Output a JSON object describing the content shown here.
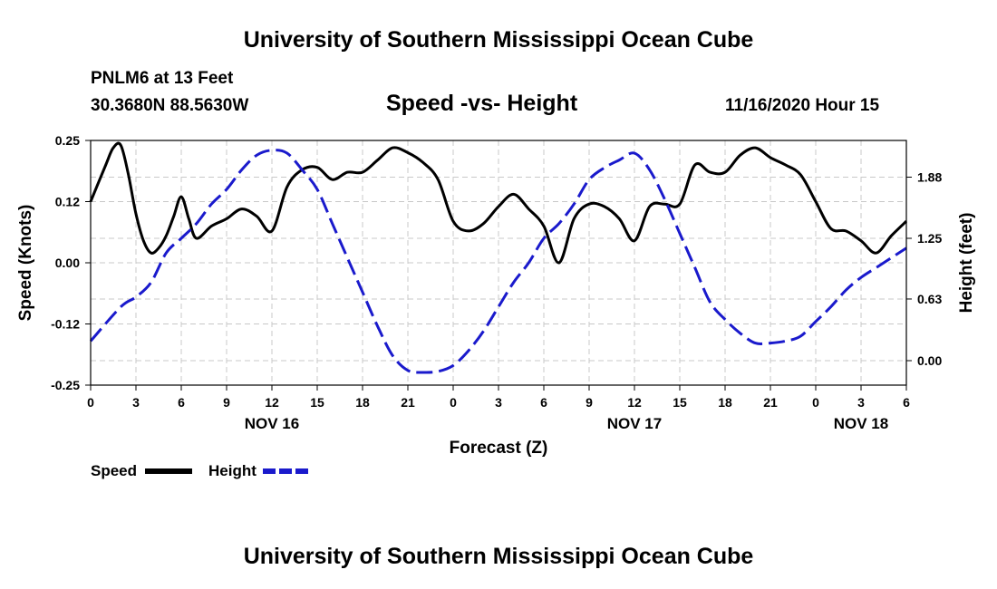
{
  "header": {
    "title": "University of Southern Mississippi Ocean Cube",
    "station": "PNLM6 at 13 Feet",
    "coords": "30.3680N 88.5630W",
    "timestamp": "11/16/2020 Hour 15"
  },
  "footer": {
    "title": "University of Southern Mississippi Ocean Cube"
  },
  "colors": {
    "speed": "#000000",
    "height": "#1a1acc",
    "grid": "#c8c8c8"
  },
  "chart_data": {
    "type": "line",
    "title": "Speed -vs- Height",
    "xlabel": "Forecast (Z)",
    "ylabel": "Speed (Knots)",
    "y2label": "Height (feet)",
    "xlim": [
      0,
      54
    ],
    "ylim": [
      -0.25,
      0.25
    ],
    "y2lim": [
      -0.25,
      2.25
    ],
    "yticks": [
      {
        "value": 0.25,
        "label": "0.25"
      },
      {
        "value": 0.125,
        "label": "0.12"
      },
      {
        "value": 0.0,
        "label": "0.00"
      },
      {
        "value": -0.125,
        "label": "-0.12"
      },
      {
        "value": -0.25,
        "label": "-0.25"
      }
    ],
    "y2ticks": [
      {
        "value": 1.875,
        "label": "1.88"
      },
      {
        "value": 1.25,
        "label": "1.25"
      },
      {
        "value": 0.63,
        "label": "0.63"
      },
      {
        "value": 0.0,
        "label": "0.00"
      }
    ],
    "xticks": [
      "0",
      "3",
      "6",
      "9",
      "12",
      "15",
      "18",
      "21",
      "0",
      "3",
      "6",
      "9",
      "12",
      "15",
      "18",
      "21",
      "0",
      "3",
      "6"
    ],
    "day_labels": [
      {
        "label": "NOV 16",
        "x": 12
      },
      {
        "label": "NOV 17",
        "x": 36
      },
      {
        "label": "NOV 18",
        "x": 51
      }
    ],
    "legend": {
      "placement": "bottom-left",
      "speed": "Speed",
      "height": "Height"
    },
    "series": [
      {
        "name": "Speed",
        "axis": "left",
        "style": "solid",
        "x": [
          0,
          1,
          1.5,
          2,
          2.5,
          3,
          3.5,
          4,
          4.5,
          5,
          5.5,
          6,
          6.5,
          7,
          8,
          9,
          10,
          11,
          12,
          13,
          14,
          15,
          16,
          17,
          18,
          19,
          20,
          21,
          22,
          23,
          24,
          25,
          26,
          27,
          28,
          29,
          30,
          31,
          32,
          33,
          34,
          35,
          36,
          37,
          38,
          39,
          40,
          41,
          42,
          43,
          44,
          45,
          46,
          47,
          48,
          49,
          50,
          51,
          52,
          53,
          54
        ],
        "values": [
          0.125,
          0.2,
          0.235,
          0.24,
          0.18,
          0.1,
          0.045,
          0.02,
          0.03,
          0.055,
          0.095,
          0.135,
          0.09,
          0.05,
          0.075,
          0.09,
          0.11,
          0.095,
          0.065,
          0.155,
          0.19,
          0.195,
          0.17,
          0.185,
          0.185,
          0.21,
          0.235,
          0.225,
          0.205,
          0.17,
          0.085,
          0.065,
          0.08,
          0.115,
          0.14,
          0.11,
          0.075,
          0.0,
          0.09,
          0.12,
          0.115,
          0.09,
          0.045,
          0.115,
          0.12,
          0.12,
          0.2,
          0.185,
          0.185,
          0.22,
          0.235,
          0.215,
          0.2,
          0.18,
          0.125,
          0.07,
          0.065,
          0.045,
          0.02,
          0.055,
          0.085
        ]
      },
      {
        "name": "Height",
        "axis": "right",
        "style": "dashed",
        "x": [
          0,
          2,
          3,
          4,
          5,
          6,
          7,
          8,
          9,
          10,
          11,
          12,
          13,
          14,
          15,
          16,
          17,
          18,
          19,
          20,
          21,
          22,
          23,
          24,
          25,
          26,
          27,
          28,
          29,
          30,
          31,
          32,
          33,
          34,
          35,
          36,
          37,
          38,
          39,
          40,
          41,
          42,
          43,
          44,
          45,
          46,
          47,
          48,
          49,
          50,
          51,
          52,
          53,
          54
        ],
        "values": [
          0.2,
          0.55,
          0.65,
          0.8,
          1.1,
          1.25,
          1.4,
          1.6,
          1.75,
          1.95,
          2.1,
          2.15,
          2.12,
          1.95,
          1.75,
          1.4,
          1.05,
          0.7,
          0.35,
          0.05,
          -0.1,
          -0.12,
          -0.11,
          -0.05,
          0.1,
          0.3,
          0.55,
          0.8,
          1.0,
          1.25,
          1.4,
          1.6,
          1.85,
          1.97,
          2.05,
          2.12,
          1.95,
          1.65,
          1.3,
          0.95,
          0.6,
          0.42,
          0.28,
          0.18,
          0.18,
          0.2,
          0.25,
          0.4,
          0.55,
          0.72,
          0.85,
          0.95,
          1.05,
          1.15
        ]
      }
    ]
  }
}
